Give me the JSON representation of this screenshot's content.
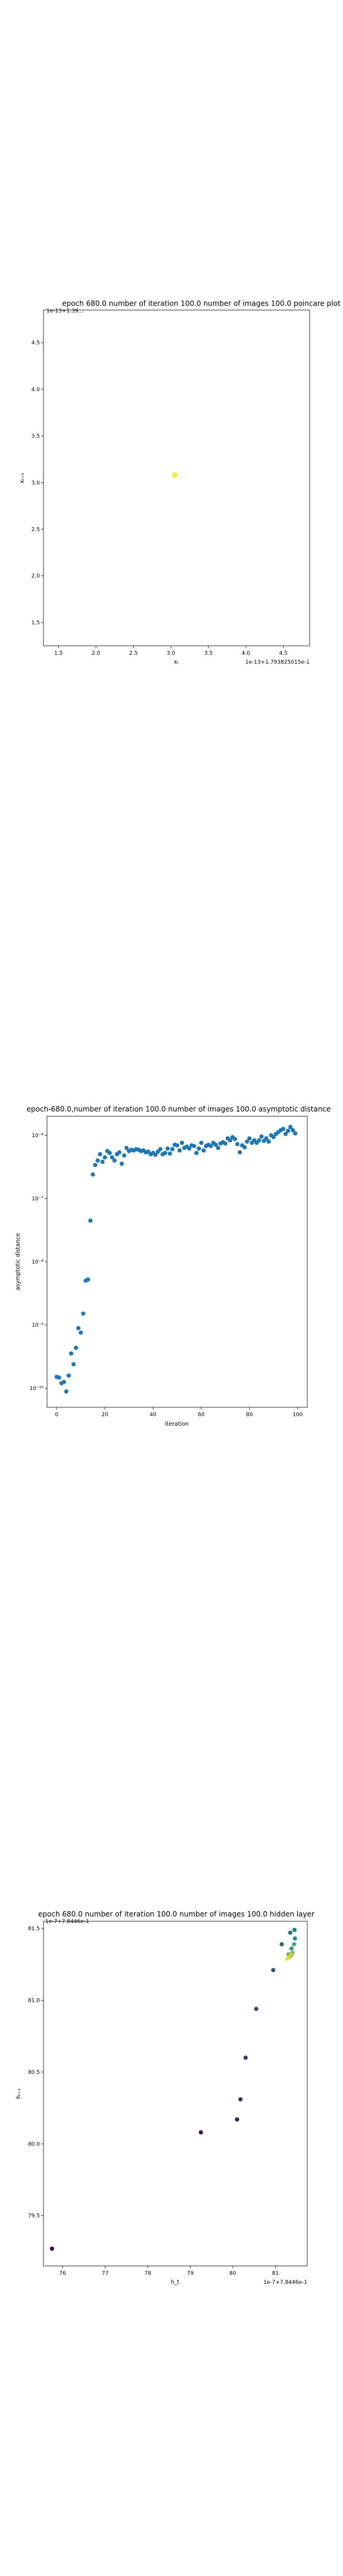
{
  "chart_data": [
    {
      "type": "scatter",
      "title": "epoch 680.0 number of iteration 100.0 number of images 100.0 poincare plot",
      "overlay_text": "1e-13+1.39...",
      "xlabel": "xₜ",
      "ylabel": "xₜ₊₁",
      "offset_label": "1e-13+1.793825015e-1",
      "xlim": [
        1.3,
        4.85
      ],
      "ylim": [
        1.25,
        4.85
      ],
      "xticks": [
        "1.5",
        "2.0",
        "2.5",
        "3.0",
        "3.5",
        "4.0",
        "4.5"
      ],
      "yticks": [
        "1.5",
        "2.0",
        "2.5",
        "3.0",
        "3.5",
        "4.0",
        "4.5"
      ],
      "colors": {
        "point": "#fde725"
      },
      "points": [
        {
          "x": 3.05,
          "y": 3.08
        }
      ]
    },
    {
      "type": "scatter",
      "title": "epoch-680.0,number of iteration 100.0  number of images 100.0 asymptotic distance",
      "xlabel": "iteration",
      "ylabel": "asymptotic distance",
      "y_scale": "log",
      "xlim": [
        -4,
        104
      ],
      "ylim_log10": [
        -10.3,
        -5.7
      ],
      "xticks": [
        "0",
        "20",
        "40",
        "60",
        "80",
        "100"
      ],
      "yticks": [
        "10⁻¹⁰",
        "10⁻⁹",
        "10⁻⁸",
        "10⁻⁷",
        "10⁻⁶"
      ],
      "colors": {
        "point": "#1f77b4"
      },
      "x": [
        0,
        1,
        2,
        3,
        4,
        5,
        6,
        7,
        8,
        9,
        10,
        11,
        12,
        13,
        14,
        15,
        16,
        17,
        18,
        19,
        20,
        21,
        22,
        23,
        24,
        25,
        26,
        27,
        28,
        29,
        30,
        31,
        32,
        33,
        34,
        35,
        36,
        37,
        38,
        39,
        40,
        41,
        42,
        43,
        44,
        45,
        46,
        47,
        48,
        49,
        50,
        51,
        52,
        53,
        54,
        55,
        56,
        57,
        58,
        59,
        60,
        61,
        62,
        63,
        64,
        65,
        66,
        67,
        68,
        69,
        70,
        71,
        72,
        73,
        74,
        75,
        76,
        77,
        78,
        79,
        80,
        81,
        82,
        83,
        84,
        85,
        86,
        87,
        88,
        89,
        90,
        91,
        92,
        93,
        94,
        95,
        96,
        97,
        98,
        99
      ],
      "log10_y": [
        -9.82,
        -9.83,
        -9.92,
        -9.9,
        -10.05,
        -9.8,
        -9.45,
        -9.62,
        -9.36,
        -9.05,
        -9.12,
        -8.82,
        -8.3,
        -8.28,
        -7.35,
        -6.62,
        -6.47,
        -6.4,
        -6.3,
        -6.42,
        -6.35,
        -6.25,
        -6.28,
        -6.35,
        -6.4,
        -6.3,
        -6.27,
        -6.45,
        -6.32,
        -6.2,
        -6.25,
        -6.23,
        -6.24,
        -6.22,
        -6.23,
        -6.25,
        -6.24,
        -6.27,
        -6.26,
        -6.3,
        -6.28,
        -6.31,
        -6.26,
        -6.22,
        -6.3,
        -6.28,
        -6.21,
        -6.29,
        -6.22,
        -6.15,
        -6.16,
        -6.24,
        -6.12,
        -6.2,
        -6.18,
        -6.21,
        -6.16,
        -6.17,
        -6.28,
        -6.21,
        -6.12,
        -6.24,
        -6.17,
        -6.15,
        -6.17,
        -6.12,
        -6.15,
        -6.2,
        -6.13,
        -6.11,
        -6.13,
        -6.05,
        -6.08,
        -6.03,
        -6.06,
        -6.14,
        -6.27,
        -6.16,
        -6.19,
        -6.1,
        -6.05,
        -6.12,
        -6.08,
        -6.12,
        -6.08,
        -6.02,
        -6.09,
        -6.05,
        -6.1,
        -6.0,
        -6.03,
        -5.98,
        -5.95,
        -5.92,
        -5.9,
        -5.98,
        -5.93,
        -5.87,
        -5.92,
        -5.97
      ]
    },
    {
      "type": "scatter",
      "title": "epoch 680.0 number of iteration 100.0  number of images 100.0 hidden layer",
      "overlay_text": "1e-7+7.8446e-1",
      "xlabel": "h_t",
      "ylabel": "hₜ₊₁",
      "offset_label": "1e-7+7.8446e-1",
      "xlim": [
        75.55,
        81.75
      ],
      "ylim": [
        79.15,
        81.55
      ],
      "xticks": [
        "76",
        "77",
        "78",
        "79",
        "80",
        "81"
      ],
      "yticks": [
        "79.5",
        "80.0",
        "80.5",
        "81.0",
        "81.5"
      ],
      "colors": {
        "start": "#440154",
        "mid": "#21918c",
        "end": "#fde725"
      },
      "points": [
        {
          "x": 75.75,
          "y": 79.27,
          "c": 0.0
        },
        {
          "x": 79.25,
          "y": 80.08,
          "c": 0.05
        },
        {
          "x": 80.1,
          "y": 80.17,
          "c": 0.1
        },
        {
          "x": 80.18,
          "y": 80.31,
          "c": 0.15
        },
        {
          "x": 80.3,
          "y": 80.6,
          "c": 0.2
        },
        {
          "x": 80.55,
          "y": 80.94,
          "c": 0.25
        },
        {
          "x": 80.95,
          "y": 81.21,
          "c": 0.3
        },
        {
          "x": 81.15,
          "y": 81.39,
          "c": 0.35
        },
        {
          "x": 81.35,
          "y": 81.47,
          "c": 0.4
        },
        {
          "x": 81.45,
          "y": 81.49,
          "c": 0.45
        },
        {
          "x": 81.46,
          "y": 81.43,
          "c": 0.5
        },
        {
          "x": 81.38,
          "y": 81.36,
          "c": 0.55
        },
        {
          "x": 81.44,
          "y": 81.39,
          "c": 0.6
        },
        {
          "x": 81.31,
          "y": 81.32,
          "c": 0.65
        },
        {
          "x": 81.4,
          "y": 81.33,
          "c": 0.7
        },
        {
          "x": 81.37,
          "y": 81.31,
          "c": 0.75
        },
        {
          "x": 81.33,
          "y": 81.3,
          "c": 0.8
        },
        {
          "x": 81.36,
          "y": 81.32,
          "c": 0.85
        },
        {
          "x": 81.34,
          "y": 81.3,
          "c": 0.9
        },
        {
          "x": 81.28,
          "y": 81.29,
          "c": 0.95
        }
      ]
    }
  ]
}
